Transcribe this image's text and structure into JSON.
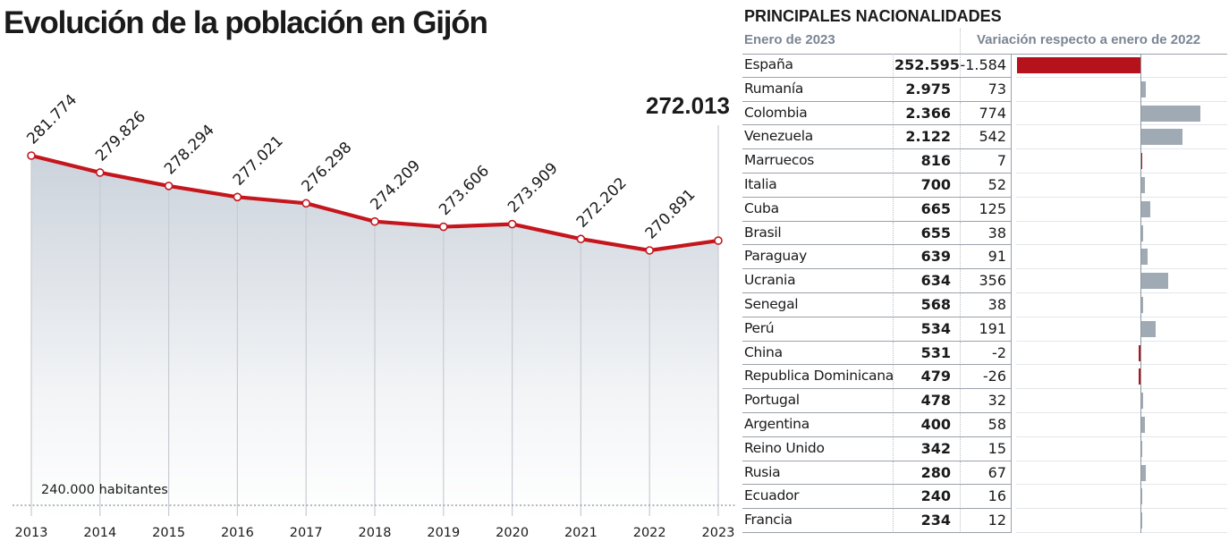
{
  "title": "Evolución de la población en Gijón",
  "chart_data": [
    {
      "type": "area",
      "title": "Evolución de la población en Gijón",
      "x": [
        "2013",
        "2014",
        "2015",
        "2016",
        "2017",
        "2018",
        "2019",
        "2020",
        "2021",
        "2022",
        "2023"
      ],
      "values": [
        281774,
        279826,
        278294,
        277021,
        276298,
        274209,
        273606,
        273909,
        272202,
        270891,
        272013
      ],
      "data_labels": [
        "281.774",
        "279.826",
        "278.294",
        "277.021",
        "276.298",
        "274.209",
        "273.606",
        "273.909",
        "272.202",
        "270.891",
        "272.013"
      ],
      "highlight_label": "272.013",
      "baseline_label": "240.000 habitantes",
      "baseline_value": 240000,
      "ylim": [
        240000,
        284000
      ],
      "xlabel": "",
      "ylabel": "",
      "grid": false,
      "colors": {
        "line": "#c4161c",
        "fill_top": "#ccd3dc",
        "fill_bottom": "#ffffff",
        "gridline": "#c8ccd2"
      }
    },
    {
      "type": "bar",
      "title": "PRINCIPALES NACIONALIDADES",
      "subtitle_left": "Enero de 2023",
      "subtitle_right": "Variación respecto a enero de 2022",
      "categories": [
        "España",
        "Rumanía",
        "Colombia",
        "Venezuela",
        "Marruecos",
        "Italia",
        "Cuba",
        "Brasil",
        "Paraguay",
        "Ucrania",
        "Senegal",
        "Perú",
        "China",
        "Republica Dominicana",
        "Portugal",
        "Argentina",
        "Reino Unido",
        "Rusia",
        "Ecuador",
        "Francia"
      ],
      "series": [
        {
          "name": "Enero de 2023",
          "values": [
            252595,
            2975,
            2366,
            2122,
            816,
            700,
            665,
            655,
            639,
            634,
            568,
            534,
            531,
            479,
            478,
            400,
            342,
            280,
            240,
            234
          ]
        },
        {
          "name": "Variación respecto a enero de 2022",
          "values": [
            -1584,
            73,
            774,
            542,
            7,
            52,
            125,
            38,
            91,
            356,
            38,
            191,
            -2,
            -26,
            32,
            58,
            15,
            67,
            16,
            12
          ]
        }
      ],
      "population_labels": [
        "252.595",
        "2.975",
        "2.366",
        "2.122",
        "816",
        "700",
        "665",
        "655",
        "639",
        "634",
        "568",
        "534",
        "531",
        "479",
        "478",
        "400",
        "342",
        "280",
        "240",
        "234"
      ],
      "variation_labels": [
        "-1.584",
        "73",
        "774",
        "542",
        "7",
        "52",
        "125",
        "38",
        "91",
        "356",
        "38",
        "191",
        "-2",
        "-26",
        "32",
        "58",
        "15",
        "67",
        "16",
        "12"
      ],
      "bar_colors": [
        "#b5121b",
        "#a0aab5",
        "#a0aab5",
        "#a0aab5",
        "#b5121b",
        "#a0aab5",
        "#a0aab5",
        "#a0aab5",
        "#a0aab5",
        "#a0aab5",
        "#a0aab5",
        "#a0aab5",
        "#b5121b",
        "#b5121b",
        "#a0aab5",
        "#a0aab5",
        "#a0aab5",
        "#a0aab5",
        "#a0aab5",
        "#a0aab5"
      ],
      "xlim": [
        -1600,
        3000
      ]
    }
  ]
}
